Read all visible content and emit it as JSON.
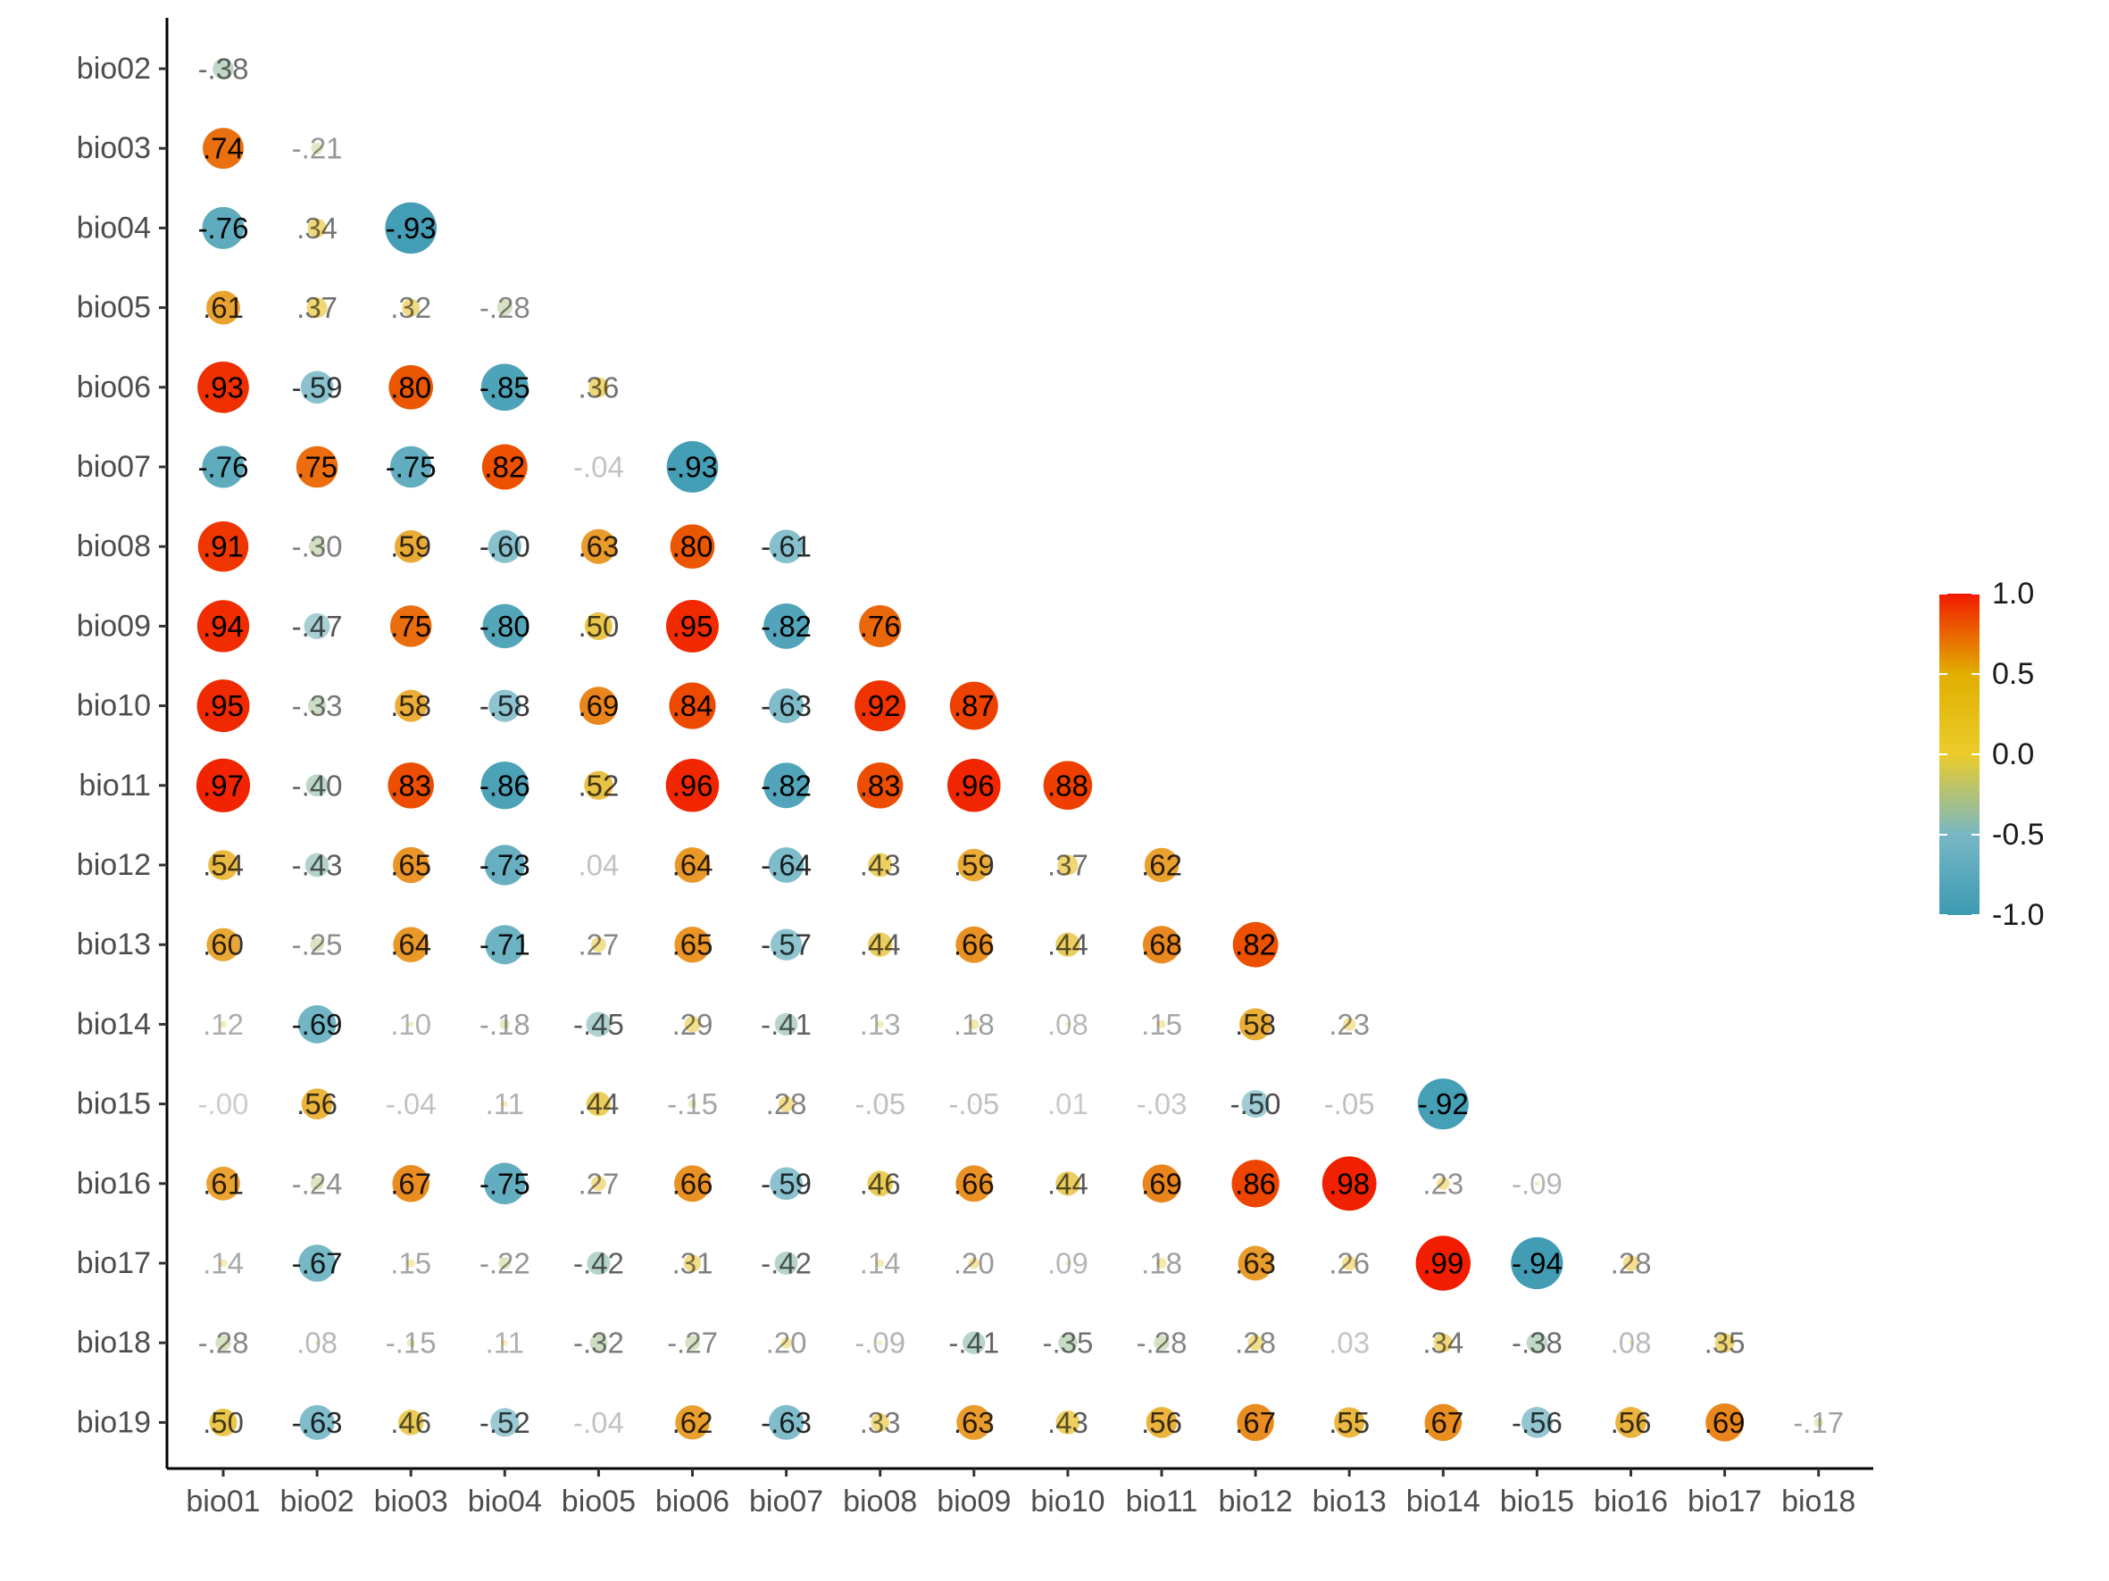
{
  "chart_data": {
    "type": "heatmap",
    "subtype": "lower-triangle correlation matrix (circles)",
    "title": "",
    "xlabel": "",
    "ylabel": "",
    "x_categories": [
      "bio01",
      "bio02",
      "bio03",
      "bio04",
      "bio05",
      "bio06",
      "bio07",
      "bio08",
      "bio09",
      "bio10",
      "bio11",
      "bio12",
      "bio13",
      "bio14",
      "bio15",
      "bio16",
      "bio17",
      "bio18"
    ],
    "y_categories": [
      "bio02",
      "bio03",
      "bio04",
      "bio05",
      "bio06",
      "bio07",
      "bio08",
      "bio09",
      "bio10",
      "bio11",
      "bio12",
      "bio13",
      "bio14",
      "bio15",
      "bio16",
      "bio17",
      "bio18",
      "bio19"
    ],
    "rows": [
      {
        "y": "bio02",
        "values": [
          -0.38
        ]
      },
      {
        "y": "bio03",
        "values": [
          0.74,
          -0.21
        ]
      },
      {
        "y": "bio04",
        "values": [
          -0.76,
          0.34,
          -0.93
        ]
      },
      {
        "y": "bio05",
        "values": [
          0.61,
          0.37,
          0.32,
          -0.28
        ]
      },
      {
        "y": "bio06",
        "values": [
          0.93,
          -0.59,
          0.8,
          -0.85,
          0.36
        ]
      },
      {
        "y": "bio07",
        "values": [
          -0.76,
          0.75,
          -0.75,
          0.82,
          -0.04,
          -0.93
        ]
      },
      {
        "y": "bio08",
        "values": [
          0.91,
          -0.3,
          0.59,
          -0.6,
          0.63,
          0.8,
          -0.61
        ]
      },
      {
        "y": "bio09",
        "values": [
          0.94,
          -0.47,
          0.75,
          -0.8,
          0.5,
          0.95,
          -0.82,
          0.76
        ]
      },
      {
        "y": "bio10",
        "values": [
          0.95,
          -0.33,
          0.58,
          -0.58,
          0.69,
          0.84,
          -0.63,
          0.92,
          0.87
        ]
      },
      {
        "y": "bio11",
        "values": [
          0.97,
          -0.4,
          0.83,
          -0.86,
          0.52,
          0.96,
          -0.82,
          0.83,
          0.96,
          0.88
        ]
      },
      {
        "y": "bio12",
        "values": [
          0.54,
          -0.43,
          0.65,
          -0.73,
          0.04,
          0.64,
          -0.64,
          0.43,
          0.59,
          0.37,
          0.62
        ]
      },
      {
        "y": "bio13",
        "values": [
          0.6,
          -0.25,
          0.64,
          -0.71,
          0.27,
          0.65,
          -0.57,
          0.44,
          0.66,
          0.44,
          0.68,
          0.82
        ]
      },
      {
        "y": "bio14",
        "values": [
          0.12,
          -0.69,
          0.1,
          -0.18,
          -0.45,
          0.29,
          -0.41,
          0.13,
          0.18,
          0.08,
          0.15,
          0.58,
          0.23
        ]
      },
      {
        "y": "bio15",
        "values": [
          -0.0,
          0.56,
          -0.04,
          0.11,
          0.44,
          -0.15,
          0.28,
          -0.05,
          -0.05,
          0.01,
          -0.03,
          -0.5,
          -0.05,
          -0.92
        ]
      },
      {
        "y": "bio16",
        "values": [
          0.61,
          -0.24,
          0.67,
          -0.75,
          0.27,
          0.66,
          -0.59,
          0.46,
          0.66,
          0.44,
          0.69,
          0.86,
          0.98,
          0.23,
          -0.09
        ]
      },
      {
        "y": "bio17",
        "values": [
          0.14,
          -0.67,
          0.15,
          -0.22,
          -0.42,
          0.31,
          -0.42,
          0.14,
          0.2,
          0.09,
          0.18,
          0.63,
          0.26,
          0.99,
          -0.94,
          0.28
        ]
      },
      {
        "y": "bio18",
        "values": [
          -0.28,
          0.08,
          -0.15,
          0.11,
          -0.32,
          -0.27,
          0.2,
          -0.09,
          -0.41,
          -0.35,
          -0.28,
          0.28,
          0.03,
          0.34,
          -0.38,
          0.08,
          0.35
        ]
      },
      {
        "y": "bio19",
        "values": [
          0.5,
          -0.63,
          0.46,
          -0.52,
          -0.04,
          0.62,
          -0.63,
          0.33,
          0.63,
          0.43,
          0.56,
          0.67,
          0.55,
          0.67,
          -0.56,
          0.56,
          0.69,
          -0.17
        ]
      }
    ],
    "legend": {
      "position": "right",
      "range": [
        -1.0,
        1.0
      ],
      "ticks": [
        "1.0",
        "0.5",
        "0.0",
        "-0.5",
        "-1.0"
      ],
      "colors": [
        "#3b9ab2",
        "#78b7c5",
        "#ebcc2a",
        "#e1af00",
        "#f21a00"
      ]
    },
    "grid": false
  }
}
